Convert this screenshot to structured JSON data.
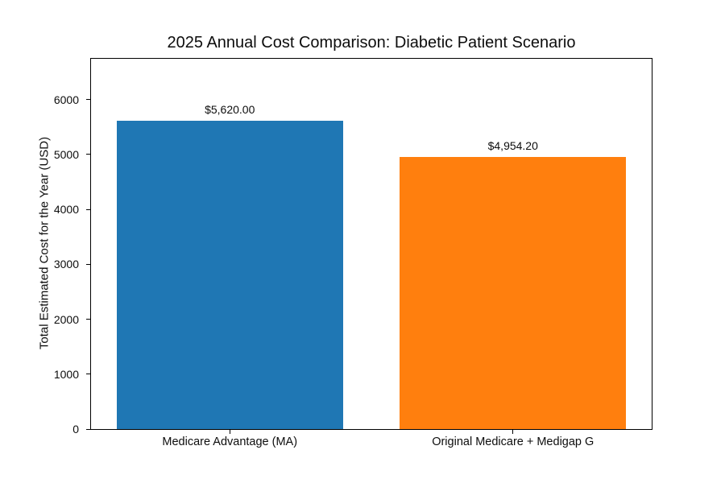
{
  "chart_data": {
    "type": "bar",
    "title": "2025 Annual Cost Comparison: Diabetic Patient Scenario",
    "ylabel": "Total Estimated Cost for the Year (USD)",
    "xlabel": "",
    "categories": [
      "Medicare Advantage (MA)",
      "Original Medicare + Medigap G"
    ],
    "values": [
      5620.0,
      4954.2
    ],
    "bar_labels": [
      "$5,620.00",
      "$4,954.20"
    ],
    "bar_colors": [
      "#1f77b4",
      "#ff7f0e"
    ],
    "ylim": [
      0,
      6744
    ],
    "ytick_values": [
      0,
      1000,
      2000,
      3000,
      4000,
      5000,
      6000
    ],
    "yticks": [
      "0",
      "1000",
      "2000",
      "3000",
      "4000",
      "5000",
      "6000"
    ],
    "grid": false,
    "legend_position": "none"
  }
}
